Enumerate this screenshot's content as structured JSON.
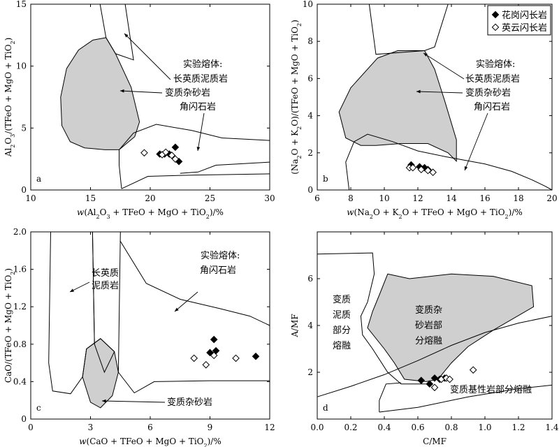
{
  "chart_data": [
    {
      "type": "scatter",
      "panel_label": "a",
      "xlabel": "w(Al2O3 + TFeO + MgO + TiO2)/%",
      "ylabel": "Al2O3/(TFeO + MgO + TiO2)",
      "xlim": [
        10,
        30
      ],
      "ylim": [
        0,
        15
      ],
      "xticks": [
        "10",
        "15",
        "20",
        "25",
        "30"
      ],
      "yticks": [
        "0",
        "5",
        "10",
        "15"
      ],
      "legend": {
        "position": "none",
        "entries": []
      },
      "series": [
        {
          "name": "花岗闪长岩",
          "marker": "filled-diamond",
          "x": [
            20.8,
            21.2,
            21.6,
            22.1,
            22.4
          ],
          "y": [
            2.9,
            2.9,
            2.9,
            3.45,
            2.3
          ]
        },
        {
          "name": "英云闪长岩",
          "marker": "open-diamond",
          "x": [
            19.5,
            21.0,
            21.3,
            21.8,
            22.1
          ],
          "y": [
            3.0,
            2.85,
            3.05,
            2.8,
            2.5
          ]
        }
      ],
      "annotations": [
        {
          "id": "heading",
          "text": "实验熔体:"
        },
        {
          "id": "felsic-pelite",
          "text": "长英质泥质岩"
        },
        {
          "id": "greywacke",
          "text": "变质杂砂岩"
        },
        {
          "id": "amphibolite",
          "text": "角闪石岩"
        }
      ]
    },
    {
      "type": "scatter",
      "panel_label": "b",
      "xlabel": "w(Na2O + K2O + TFeO + MgO + TiO2)/%",
      "ylabel": "(Na2O + K2O)/(TFeO + MgO + TiO2)",
      "xlim": [
        6,
        20
      ],
      "ylim": [
        0,
        10
      ],
      "xticks": [
        "6",
        "8",
        "10",
        "12",
        "14",
        "16",
        "18",
        "20"
      ],
      "yticks": [
        "0",
        "2",
        "4",
        "6",
        "8",
        "10"
      ],
      "legend": {
        "position": "top-right",
        "entries": [
          "花岗闪长岩",
          "英云闪长岩"
        ]
      },
      "series": [
        {
          "name": "花岗闪长岩",
          "marker": "filled-diamond",
          "x": [
            11.6,
            12.1,
            12.4,
            12.6
          ],
          "y": [
            1.35,
            1.25,
            1.2,
            1.1
          ]
        },
        {
          "name": "英云闪长岩",
          "marker": "open-diamond",
          "x": [
            11.5,
            11.7,
            12.2,
            12.6,
            12.9
          ],
          "y": [
            1.2,
            1.2,
            1.1,
            1.05,
            0.95
          ]
        }
      ],
      "annotations": [
        {
          "id": "heading",
          "text": "实验熔体:"
        },
        {
          "id": "felsic-pelite",
          "text": "长英质泥质岩"
        },
        {
          "id": "greywacke",
          "text": "变质杂砂岩"
        },
        {
          "id": "amphibolite",
          "text": "角闪石岩"
        }
      ]
    },
    {
      "type": "scatter",
      "panel_label": "c",
      "xlabel": "w(CaO + TFeO + MgO + TiO2)/%",
      "ylabel": "CaO/(TFeO + MgO + TiO2)",
      "xlim": [
        0,
        12
      ],
      "ylim": [
        0,
        2.0
      ],
      "xticks": [
        "0",
        "3",
        "6",
        "9",
        "12"
      ],
      "yticks": [
        "0",
        "0.4",
        "0.8",
        "1.2",
        "1.6",
        "2.0"
      ],
      "legend": {
        "position": "none",
        "entries": []
      },
      "series": [
        {
          "name": "花岗闪长岩",
          "marker": "filled-diamond",
          "x": [
            9.0,
            9.2,
            9.3,
            11.3
          ],
          "y": [
            0.71,
            0.85,
            0.73,
            0.67
          ]
        },
        {
          "name": "英云闪长岩",
          "marker": "open-diamond",
          "x": [
            8.2,
            8.8,
            9.2,
            10.3
          ],
          "y": [
            0.65,
            0.58,
            0.68,
            0.65
          ]
        }
      ],
      "annotations": [
        {
          "id": "heading",
          "text": "实验熔体:"
        },
        {
          "id": "amphibolite",
          "text": "角闪石岩"
        },
        {
          "id": "felsic-pelite-1",
          "text": "长英质"
        },
        {
          "id": "felsic-pelite-2",
          "text": "泥质岩"
        },
        {
          "id": "greywacke",
          "text": "变质杂砂岩"
        }
      ]
    },
    {
      "type": "scatter",
      "panel_label": "d",
      "xlabel": "C/MF",
      "ylabel": "A/MF",
      "xlim": [
        0,
        1.4
      ],
      "ylim": [
        0,
        8
      ],
      "xticks": [
        "0.0",
        "0.2",
        "0.4",
        "0.6",
        "0.8",
        "1.0",
        "1.2",
        "1.4"
      ],
      "yticks": [
        "2",
        "4",
        "6"
      ],
      "legend": {
        "position": "none",
        "entries": []
      },
      "series": [
        {
          "name": "花岗闪长岩",
          "marker": "filled-diamond",
          "x": [
            0.62,
            0.67,
            0.7,
            0.73,
            0.76
          ],
          "y": [
            1.65,
            1.5,
            1.75,
            1.7,
            1.75
          ]
        },
        {
          "name": "英云闪长岩",
          "marker": "open-diamond",
          "x": [
            0.7,
            0.74,
            0.77,
            0.79,
            0.93
          ],
          "y": [
            1.35,
            1.7,
            1.75,
            1.7,
            2.1
          ]
        }
      ],
      "annotations": [
        {
          "id": "pelite-1",
          "text": "变质"
        },
        {
          "id": "pelite-2",
          "text": "泥质"
        },
        {
          "id": "pelite-3",
          "text": "部分"
        },
        {
          "id": "pelite-4",
          "text": "熔融"
        },
        {
          "id": "greywacke-1",
          "text": "变质杂"
        },
        {
          "id": "greywacke-2",
          "text": "砂岩部"
        },
        {
          "id": "greywacke-3",
          "text": "分熔融"
        },
        {
          "id": "basic",
          "text": "变质基性岩部分熔融"
        }
      ]
    }
  ]
}
